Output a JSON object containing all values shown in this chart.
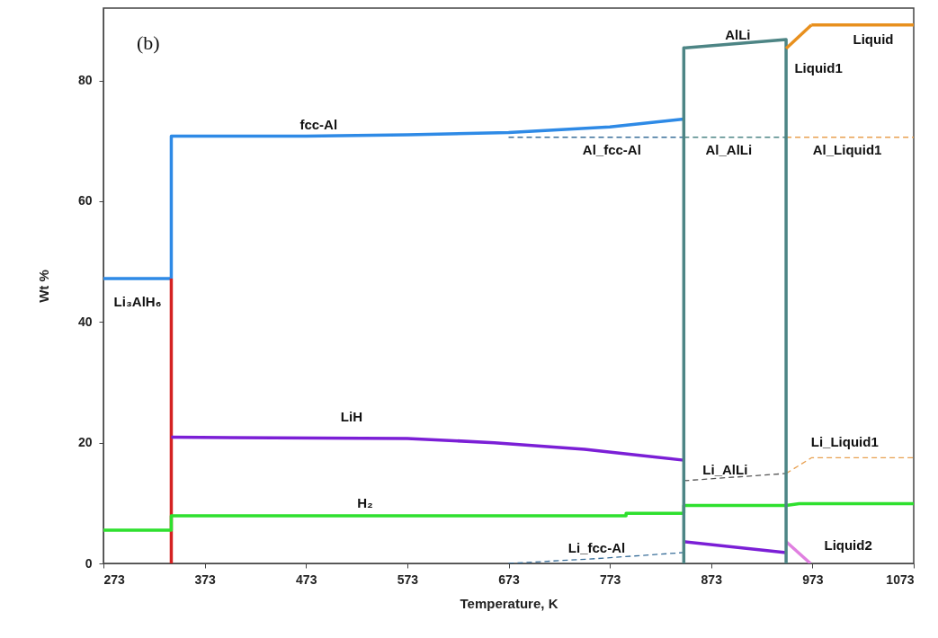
{
  "chart_data": {
    "type": "line",
    "xlabel": "Temperature, K",
    "ylabel": "Wt %",
    "xlim": [
      273,
      1073
    ],
    "xticks": [
      273,
      373,
      473,
      573,
      673,
      773,
      873,
      973,
      1073
    ],
    "ylim": [
      0,
      92
    ],
    "yticks": [
      0,
      20,
      40,
      60,
      80
    ],
    "grid": false,
    "marker": "none",
    "series": [
      {
        "name": "Li₃AlH₆",
        "color": "#2e8ae6",
        "x": [
          273,
          340
        ],
        "values": [
          47.2,
          47.2
        ]
      },
      {
        "name": "fcc-Al",
        "color": "#2e8ae6",
        "x": [
          340,
          340,
          473,
          573,
          673,
          773,
          846
        ],
        "values": [
          47.2,
          70.8,
          70.8,
          71.0,
          71.4,
          72.3,
          73.6
        ]
      },
      {
        "color": "#d42222",
        "x": [
          340,
          340
        ],
        "values": [
          0,
          47.2
        ]
      },
      {
        "name": "Al_fcc-Al",
        "color": "#3a6f9a",
        "line_style": "dashed",
        "x": [
          673,
          846
        ],
        "values": [
          70.6,
          70.6
        ]
      },
      {
        "name": "Al_AlLi",
        "color": "#4d8585",
        "line_style": "dashed",
        "x": [
          846,
          947
        ],
        "values": [
          70.6,
          70.6
        ]
      },
      {
        "name": "Al_Liquid1",
        "color": "#e8a050",
        "line_style": "dashed",
        "x": [
          947,
          1073
        ],
        "values": [
          70.6,
          70.6
        ]
      },
      {
        "name": "Li_fcc-Al",
        "color": "#3a6f9a",
        "line_style": "dashed",
        "x": [
          673,
          760,
          846
        ],
        "values": [
          0,
          0.8,
          1.8
        ]
      },
      {
        "name": "Li_AlLi",
        "color": "#555555",
        "line_style": "dashed",
        "x": [
          846,
          947
        ],
        "values": [
          13.7,
          14.9
        ]
      },
      {
        "name": "Li_Liquid1",
        "color": "#e8a050",
        "line_style": "dashed",
        "x": [
          947,
          972,
          1073
        ],
        "values": [
          14.9,
          17.5,
          17.5
        ]
      },
      {
        "name": "LiH",
        "color": "#7b1fd6",
        "x": [
          340,
          573,
          659,
          748,
          846
        ],
        "values": [
          20.9,
          20.7,
          20.0,
          18.9,
          17.1
        ]
      },
      {
        "color": "#7b1fd6",
        "x": [
          846,
          947
        ],
        "values": [
          3.6,
          1.8
        ]
      },
      {
        "name": "H₂",
        "color": "#2ee02e",
        "x": [
          273,
          340,
          340,
          573,
          789,
          789,
          846,
          846,
          947,
          960,
          1073
        ],
        "values": [
          5.5,
          5.5,
          7.9,
          7.9,
          7.9,
          8.3,
          8.3,
          9.6,
          9.6,
          9.9,
          9.9
        ]
      },
      {
        "name": "Liquid2",
        "color": "#e080e0",
        "x": [
          947,
          971
        ],
        "values": [
          3.6,
          0
        ]
      },
      {
        "name": "AlLi",
        "color": "#4d8585",
        "x": [
          846,
          846,
          947,
          947
        ],
        "values": [
          0,
          85.4,
          86.8,
          0
        ]
      },
      {
        "name": "Liquid1",
        "color": "#e8901e",
        "x": [
          947,
          972
        ],
        "values": [
          85.3,
          89.2
        ]
      },
      {
        "name": "Liquid",
        "color": "#e8901e",
        "x": [
          972,
          1073
        ],
        "values": [
          89.2,
          89.2
        ]
      }
    ],
    "annotations": [
      "(b)"
    ]
  }
}
